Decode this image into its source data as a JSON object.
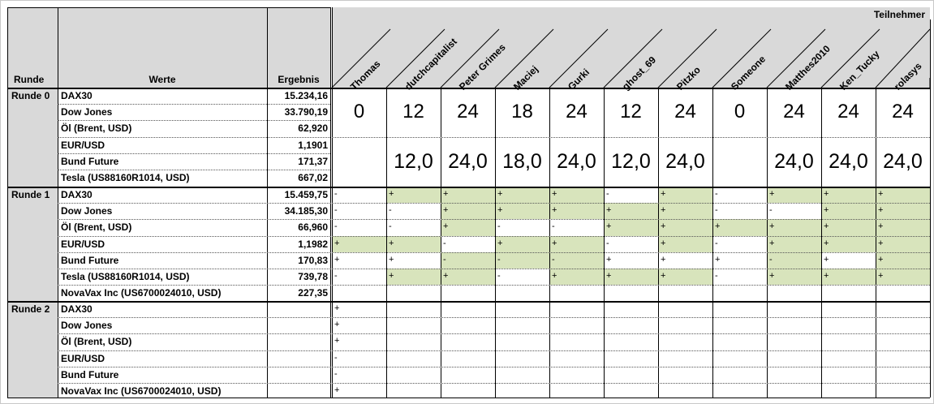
{
  "header": {
    "runde": "Runde",
    "werte": "Werte",
    "ergebnis": "Ergebnis",
    "teilnehmer": "Teilnehmer"
  },
  "participants": [
    "Thomas",
    "dutchcapitalist",
    "Peter Grimes",
    "Maciej",
    "Gurki",
    "ghost_69",
    "Pitzko",
    "Someone",
    "Matthes2010",
    "Ken_Tucky",
    "rolasys"
  ],
  "round0": {
    "label": "Runde 0",
    "items": [
      {
        "name": "DAX30",
        "value": "15.234,16"
      },
      {
        "name": "Dow Jones",
        "value": "33.790,19"
      },
      {
        "name": "Öl (Brent, USD)",
        "value": "62,920"
      },
      {
        "name": "EUR/USD",
        "value": "1,1901"
      },
      {
        "name": "Bund Future",
        "value": "171,37"
      },
      {
        "name": "Tesla (US88160R1014, USD)",
        "value": "667,02"
      }
    ],
    "points": [
      "0",
      "12",
      "24",
      "18",
      "24",
      "12",
      "24",
      "0",
      "24",
      "24",
      "24"
    ],
    "averages": [
      "",
      "12,0",
      "24,0",
      "18,0",
      "24,0",
      "12,0",
      "24,0",
      "",
      "24,0",
      "24,0",
      "24,0"
    ]
  },
  "round1": {
    "label": "Runde 1",
    "items": [
      {
        "name": "DAX30",
        "value": "15.459,75"
      },
      {
        "name": "Dow Jones",
        "value": "34.185,30"
      },
      {
        "name": "Öl (Brent, USD)",
        "value": "66,960"
      },
      {
        "name": "EUR/USD",
        "value": "1,1982"
      },
      {
        "name": "Bund Future",
        "value": "170,83"
      },
      {
        "name": "Tesla (US88160R1014, USD)",
        "value": "739,78"
      },
      {
        "name": "NovaVax Inc (US6700024010, USD)",
        "value": "227,35"
      }
    ],
    "tips": [
      [
        "-",
        "+",
        "+",
        "+",
        "+",
        "-",
        "+",
        "-",
        "+",
        "+",
        "+"
      ],
      [
        "-",
        "-",
        "+",
        "+",
        "+",
        "+",
        "+",
        "-",
        "-",
        "+",
        "+"
      ],
      [
        "-",
        "-",
        "+",
        "-",
        "-",
        "+",
        "+",
        "+",
        "+",
        "+",
        "+"
      ],
      [
        "+",
        "+",
        "-",
        "+",
        "+",
        "-",
        "+",
        "-",
        "+",
        "+",
        "+"
      ],
      [
        "+",
        "+",
        "-",
        "-",
        "-",
        "+",
        "+",
        "+",
        "-",
        "+",
        "+"
      ],
      [
        "-",
        "+",
        "+",
        "-",
        "+",
        "+",
        "+",
        "-",
        "+",
        "+",
        "+"
      ]
    ],
    "green": [
      [
        0,
        1,
        1,
        1,
        1,
        0,
        1,
        0,
        1,
        1,
        1
      ],
      [
        0,
        0,
        1,
        1,
        1,
        1,
        1,
        0,
        0,
        1,
        1
      ],
      [
        0,
        0,
        1,
        0,
        0,
        1,
        1,
        1,
        1,
        1,
        1
      ],
      [
        1,
        1,
        0,
        1,
        1,
        0,
        1,
        0,
        1,
        1,
        1
      ],
      [
        0,
        0,
        1,
        1,
        1,
        0,
        0,
        0,
        1,
        0,
        1
      ],
      [
        0,
        1,
        1,
        0,
        1,
        1,
        1,
        0,
        1,
        1,
        1
      ]
    ]
  },
  "round2": {
    "label": "Runde 2",
    "items": [
      {
        "name": "DAX30",
        "value": ""
      },
      {
        "name": "Dow Jones",
        "value": ""
      },
      {
        "name": "Öl (Brent, USD)",
        "value": ""
      },
      {
        "name": "EUR/USD",
        "value": ""
      },
      {
        "name": "Bund Future",
        "value": ""
      },
      {
        "name": "NovaVax Inc (US6700024010, USD)",
        "value": ""
      }
    ],
    "tips": [
      "+",
      "+",
      "+",
      "-",
      "-",
      "+"
    ]
  }
}
